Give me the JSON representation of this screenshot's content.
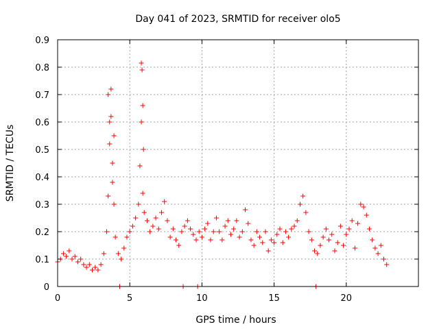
{
  "chart_data": {
    "type": "scatter",
    "title": "Day 041 of 2023, SRMTID for receiver olo5",
    "xlabel": "GPS time / hours",
    "ylabel": "SRMTID / TECUs",
    "xlim": [
      0,
      25
    ],
    "ylim": [
      0,
      0.9
    ],
    "xticks": [
      0,
      5,
      10,
      15,
      20
    ],
    "xtick_labels": [
      "0",
      "5",
      "10",
      "15",
      "20"
    ],
    "yticks": [
      0,
      0.1,
      0.2,
      0.3,
      0.4,
      0.5,
      0.6,
      0.7,
      0.8,
      0.9
    ],
    "ytick_labels": [
      "0",
      "0.1",
      "0.2",
      "0.3",
      "0.4",
      "0.5",
      "0.6",
      "0.7",
      "0.8",
      "0.9"
    ],
    "grid": true,
    "marker": "+",
    "series": [
      {
        "name": "SRMTID",
        "color": "#ff0000",
        "x": [
          0.0,
          0.2,
          0.4,
          0.6,
          0.8,
          1.0,
          1.2,
          1.4,
          1.6,
          1.8,
          2.0,
          2.2,
          2.4,
          2.6,
          2.8,
          3.0,
          3.2,
          3.4,
          3.5,
          3.6,
          3.7,
          3.8,
          3.9,
          4.0,
          4.2,
          4.4,
          4.6,
          4.8,
          5.0,
          5.2,
          5.4,
          5.6,
          5.7,
          5.8,
          5.9,
          6.0,
          6.2,
          6.4,
          6.6,
          6.8,
          7.0,
          7.2,
          7.4,
          7.6,
          7.8,
          8.0,
          8.2,
          8.4,
          8.6,
          8.8,
          9.0,
          9.2,
          9.4,
          9.6,
          9.8,
          10.0,
          10.2,
          10.4,
          10.6,
          10.8,
          11.0,
          11.2,
          11.4,
          11.6,
          11.8,
          12.0,
          12.2,
          12.4,
          12.6,
          12.8,
          13.0,
          13.2,
          13.4,
          13.6,
          13.8,
          14.0,
          14.2,
          14.4,
          14.6,
          14.8,
          15.0,
          15.2,
          15.4,
          15.6,
          15.8,
          16.0,
          16.2,
          16.4,
          16.6,
          16.8,
          17.0,
          17.2,
          17.4,
          17.6,
          17.8,
          18.0,
          18.2,
          18.4,
          18.6,
          18.8,
          19.0,
          19.2,
          19.4,
          19.6,
          19.8,
          20.0,
          20.2,
          20.4,
          20.6,
          20.8,
          21.0,
          21.2,
          21.4,
          21.6,
          21.8,
          22.0,
          22.2,
          22.4,
          22.6,
          22.8,
          3.5,
          3.6,
          3.7,
          3.8,
          3.9,
          5.8,
          5.85,
          5.9,
          5.95,
          4.3,
          8.7,
          9.7,
          17.9
        ],
        "y": [
          0.09,
          0.1,
          0.12,
          0.11,
          0.13,
          0.1,
          0.11,
          0.09,
          0.1,
          0.08,
          0.07,
          0.08,
          0.06,
          0.07,
          0.06,
          0.08,
          0.12,
          0.2,
          0.33,
          0.6,
          0.62,
          0.45,
          0.3,
          0.18,
          0.12,
          0.1,
          0.14,
          0.18,
          0.2,
          0.22,
          0.25,
          0.3,
          0.44,
          0.6,
          0.34,
          0.27,
          0.24,
          0.2,
          0.22,
          0.25,
          0.21,
          0.27,
          0.31,
          0.24,
          0.18,
          0.21,
          0.17,
          0.15,
          0.2,
          0.22,
          0.24,
          0.21,
          0.19,
          0.17,
          0.2,
          0.18,
          0.21,
          0.23,
          0.17,
          0.2,
          0.25,
          0.2,
          0.17,
          0.22,
          0.24,
          0.19,
          0.21,
          0.24,
          0.18,
          0.2,
          0.28,
          0.23,
          0.17,
          0.15,
          0.2,
          0.18,
          0.16,
          0.2,
          0.13,
          0.17,
          0.16,
          0.19,
          0.21,
          0.16,
          0.2,
          0.18,
          0.21,
          0.22,
          0.24,
          0.3,
          0.33,
          0.27,
          0.2,
          0.17,
          0.13,
          0.12,
          0.15,
          0.18,
          0.21,
          0.17,
          0.19,
          0.13,
          0.16,
          0.22,
          0.15,
          0.19,
          0.21,
          0.24,
          0.14,
          0.23,
          0.3,
          0.29,
          0.26,
          0.21,
          0.17,
          0.14,
          0.12,
          0.15,
          0.1,
          0.08,
          0.7,
          0.52,
          0.72,
          0.38,
          0.55,
          0.815,
          0.79,
          0.66,
          0.5,
          0.0,
          0.0,
          0.0,
          0.0
        ]
      }
    ]
  }
}
